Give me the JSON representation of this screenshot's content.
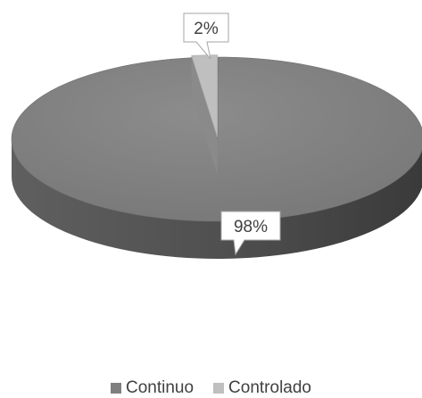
{
  "chart_data": {
    "type": "pie",
    "style": "3d",
    "title": "",
    "slices": [
      {
        "name": "Continuo",
        "value": 98,
        "label": "98%",
        "color": "#7f7f7f"
      },
      {
        "name": "Controlado",
        "value": 2,
        "label": "2%",
        "color": "#bfbfbf"
      }
    ],
    "legend_position": "bottom"
  }
}
